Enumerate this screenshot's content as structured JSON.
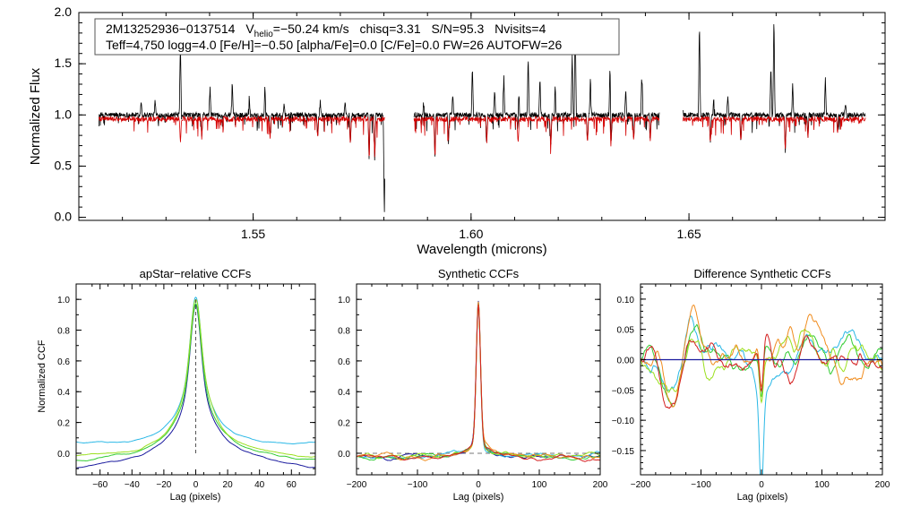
{
  "chart_data": [
    {
      "type": "line",
      "id": "spectrum",
      "title": "",
      "info_line1": {
        "object": "2M13252936−0137514",
        "vhelio_main": "V",
        "vhelio_sub": "helio",
        "vhelio_value": "=−50.24 km/s",
        "chisq": "chisq=3.31",
        "snr": "S/N=95.3",
        "nvisits": "Nvisits=4"
      },
      "info_line2": "Teff=4,750 logg=4.0 [Fe/H]=−0.50 [alpha/Fe]=0.0 [C/Fe]=0.0 FW=26 AUTOFW=26",
      "xlabel": "Wavelength (microns)",
      "ylabel": "Normalized Flux",
      "xlim": [
        1.51,
        1.695
      ],
      "ylim": [
        -0.03,
        2.0
      ],
      "xticks": [
        1.55,
        1.6,
        1.65
      ],
      "xtick_labels": [
        "1.55",
        "1.60",
        "1.65"
      ],
      "yticks": [
        0.0,
        0.5,
        1.0,
        1.5,
        2.0
      ],
      "ytick_labels": [
        "0.0",
        "0.5",
        "1.0",
        "1.5",
        "2.0"
      ],
      "series": [
        {
          "name": "observed",
          "color": "#000000",
          "segments": [
            [
              1.5146,
              1.5802
            ],
            [
              1.5869,
              1.6432
            ],
            [
              1.6486,
              1.6905
            ]
          ],
          "continuum": 1.0
        },
        {
          "name": "model",
          "color": "#d40000",
          "segments": [
            [
              1.5146,
              1.5802
            ],
            [
              1.5869,
              1.6432
            ],
            [
              1.6486,
              1.6905
            ]
          ],
          "continuum": 0.96
        }
      ],
      "emission_spikes": [
        {
          "x": 1.5243,
          "y": 1.14
        },
        {
          "x": 1.5275,
          "y": 1.14
        },
        {
          "x": 1.5333,
          "y": 2.0
        },
        {
          "x": 1.5401,
          "y": 1.28
        },
        {
          "x": 1.5452,
          "y": 1.35
        },
        {
          "x": 1.5491,
          "y": 1.18
        },
        {
          "x": 1.5527,
          "y": 1.28
        },
        {
          "x": 1.5571,
          "y": 1.12
        },
        {
          "x": 1.5654,
          "y": 1.14
        },
        {
          "x": 1.5711,
          "y": 1.14
        },
        {
          "x": 1.5891,
          "y": 1.12
        },
        {
          "x": 1.5958,
          "y": 1.2
        },
        {
          "x": 1.6003,
          "y": 1.5
        },
        {
          "x": 1.6054,
          "y": 1.25
        },
        {
          "x": 1.6075,
          "y": 1.45
        },
        {
          "x": 1.6109,
          "y": 1.38
        },
        {
          "x": 1.6131,
          "y": 1.6
        },
        {
          "x": 1.6158,
          "y": 1.38
        },
        {
          "x": 1.6193,
          "y": 1.3
        },
        {
          "x": 1.6232,
          "y": 1.62
        },
        {
          "x": 1.6239,
          "y": 2.0
        },
        {
          "x": 1.6274,
          "y": 1.4
        },
        {
          "x": 1.6319,
          "y": 1.55
        },
        {
          "x": 1.6355,
          "y": 1.25
        },
        {
          "x": 1.6392,
          "y": 1.48
        },
        {
          "x": 1.6486,
          "y": 1.9
        },
        {
          "x": 1.6524,
          "y": 1.95
        },
        {
          "x": 1.6557,
          "y": 1.16
        },
        {
          "x": 1.6589,
          "y": 1.2
        },
        {
          "x": 1.6688,
          "y": 1.5
        },
        {
          "x": 1.6695,
          "y": 2.0
        },
        {
          "x": 1.6738,
          "y": 1.3
        },
        {
          "x": 1.6813,
          "y": 1.36
        },
        {
          "x": 1.6859,
          "y": 1.12
        }
      ],
      "absorption_dips": [
        {
          "x": 1.5333,
          "y": 0.72
        },
        {
          "x": 1.5382,
          "y": 0.78
        },
        {
          "x": 1.5539,
          "y": 0.78
        },
        {
          "x": 1.5648,
          "y": 0.78
        },
        {
          "x": 1.5723,
          "y": 0.68
        },
        {
          "x": 1.5766,
          "y": 0.58
        },
        {
          "x": 1.5779,
          "y": 0.52
        },
        {
          "x": 1.5801,
          "y": -0.03
        },
        {
          "x": 1.5917,
          "y": 0.6
        },
        {
          "x": 1.5948,
          "y": 0.72
        },
        {
          "x": 1.6036,
          "y": 0.72
        },
        {
          "x": 1.6108,
          "y": 0.7
        },
        {
          "x": 1.6183,
          "y": 0.7
        },
        {
          "x": 1.6267,
          "y": 0.7
        },
        {
          "x": 1.6321,
          "y": 0.68
        },
        {
          "x": 1.6373,
          "y": 0.74
        },
        {
          "x": 1.6411,
          "y": 0.74
        },
        {
          "x": 1.6486,
          "y": 0.13
        },
        {
          "x": 1.6549,
          "y": 0.72
        },
        {
          "x": 1.6619,
          "y": 0.72
        },
        {
          "x": 1.6721,
          "y": 0.62
        },
        {
          "x": 1.6773,
          "y": 0.78
        },
        {
          "x": 1.6841,
          "y": 0.82
        }
      ]
    },
    {
      "type": "line",
      "id": "apstar-ccf",
      "title": "apStar−relative CCFs",
      "xlabel": "Lag (pixels)",
      "ylabel": "Normalized CCF",
      "xlim": [
        -75,
        75
      ],
      "ylim": [
        -0.14,
        1.1
      ],
      "xticks": [
        -60,
        -40,
        -20,
        0,
        20,
        40,
        60
      ],
      "yticks": [
        0.0,
        0.2,
        0.4,
        0.6,
        0.8,
        1.0
      ],
      "ytick_labels": [
        "0.0",
        "0.2",
        "0.4",
        "0.6",
        "0.8",
        "1.0"
      ],
      "series": [
        {
          "name": "visit-1",
          "color": "#2ab8e6",
          "edge": 0.05,
          "peak": 1.0,
          "width": 7
        },
        {
          "name": "visit-2",
          "color": "#1a1a9e",
          "edge": -0.1,
          "peak": 0.97,
          "width": 6
        },
        {
          "name": "visit-3",
          "color": "#33cc33",
          "edge": -0.05,
          "peak": 0.98,
          "width": 6.5
        },
        {
          "name": "visit-4",
          "color": "#9be020",
          "edge": -0.02,
          "peak": 1.0,
          "width": 7.5
        }
      ]
    },
    {
      "type": "line",
      "id": "synthetic-ccf",
      "title": "Synthetic CCFs",
      "xlabel": "Lag (pixels)",
      "ylabel": "",
      "xlim": [
        -200,
        200
      ],
      "ylim": [
        -0.14,
        1.1
      ],
      "xticks": [
        -200,
        -100,
        0,
        100,
        200
      ],
      "xtick_labels": [
        "−200",
        "−100",
        "0",
        "100",
        "200"
      ],
      "yticks": [
        0.0,
        0.2,
        0.4,
        0.6,
        0.8,
        1.0
      ],
      "ytick_labels": [
        "0.0",
        "0.2",
        "0.4",
        "0.6",
        "0.8",
        "1.0"
      ],
      "series": [
        {
          "name": "visit-1",
          "color": "#1a1a9e"
        },
        {
          "name": "visit-2",
          "color": "#2ab8e6"
        },
        {
          "name": "visit-3",
          "color": "#33cc33"
        },
        {
          "name": "visit-4",
          "color": "#9be020"
        },
        {
          "name": "visit-5",
          "color": "#f08c1e"
        },
        {
          "name": "visit-6",
          "color": "#d42020"
        }
      ]
    },
    {
      "type": "line",
      "id": "difference-ccf",
      "title": "Difference Synthetic CCFs",
      "xlabel": "Lag (pixels)",
      "ylabel": "",
      "xlim": [
        -200,
        200
      ],
      "ylim": [
        -0.19,
        0.125
      ],
      "xticks": [
        -200,
        -100,
        0,
        100,
        200
      ],
      "xtick_labels": [
        "−200",
        "−100",
        "0",
        "100",
        "200"
      ],
      "yticks": [
        -0.15,
        -0.1,
        -0.05,
        0.0,
        0.05,
        0.1
      ],
      "ytick_labels": [
        "−0.15",
        "−0.10",
        "−0.05",
        "0.00",
        "0.05",
        "0.10"
      ],
      "reference_line": {
        "y": 0.0,
        "color": "#1a1a9e"
      },
      "series": [
        {
          "name": "visit-1",
          "color": "#2ab8e6"
        },
        {
          "name": "visit-2",
          "color": "#33cc33"
        },
        {
          "name": "visit-3",
          "color": "#9be020"
        },
        {
          "name": "visit-4",
          "color": "#f08c1e"
        },
        {
          "name": "visit-5",
          "color": "#d42020"
        }
      ]
    }
  ]
}
